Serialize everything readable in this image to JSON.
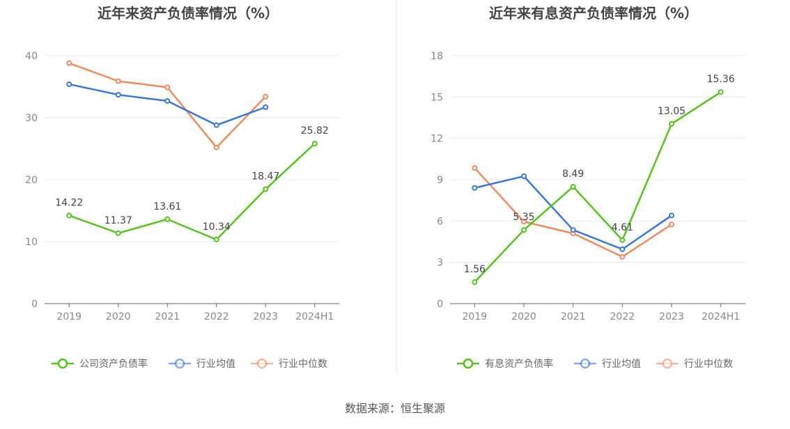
{
  "colors": {
    "green": "#52c41a",
    "blue": "#3875dc",
    "orange": "#f08a5a",
    "grid": "#e4e7ee",
    "axis": "#666666"
  },
  "source_text": "数据来源：恒生聚源",
  "chart_data": [
    {
      "type": "line",
      "title": "近年来资产负债率情况（%）",
      "categories": [
        "2019",
        "2020",
        "2021",
        "2022",
        "2023",
        "2024H1"
      ],
      "ylim": [
        0,
        40
      ],
      "yticks": [
        0,
        10,
        20,
        30,
        40
      ],
      "grid": true,
      "legend_position": "bottom",
      "series": [
        {
          "name": "公司资产负债率",
          "color": "#52c41a",
          "values": [
            14.22,
            11.37,
            13.61,
            10.34,
            18.47,
            25.82
          ],
          "labels": [
            "14.22",
            "11.37",
            "13.61",
            "10.34",
            "18.47",
            "25.82"
          ],
          "show_labels": true
        },
        {
          "name": "行业均值",
          "color": "#3875dc",
          "values": [
            35.4,
            33.7,
            32.7,
            28.8,
            31.7,
            null
          ],
          "show_labels": false
        },
        {
          "name": "行业中位数",
          "color": "#f08a5a",
          "values": [
            38.8,
            35.9,
            34.9,
            25.2,
            33.4,
            null
          ],
          "show_labels": false
        }
      ]
    },
    {
      "type": "line",
      "title": "近年来有息资产负债率情况（%）",
      "categories": [
        "2019",
        "2020",
        "2021",
        "2022",
        "2023",
        "2024H1"
      ],
      "ylim": [
        0,
        18
      ],
      "yticks": [
        0,
        3,
        6,
        9,
        12,
        15,
        18
      ],
      "grid": true,
      "legend_position": "bottom",
      "series": [
        {
          "name": "有息资产负债率",
          "color": "#52c41a",
          "values": [
            1.56,
            5.35,
            8.49,
            4.61,
            13.05,
            15.36
          ],
          "labels": [
            "1.56",
            "5.35",
            "8.49",
            "4.61",
            "13.05",
            "15.36"
          ],
          "show_labels": true
        },
        {
          "name": "行业均值",
          "color": "#3875dc",
          "values": [
            8.4,
            9.25,
            5.35,
            3.95,
            6.4,
            null
          ],
          "show_labels": false
        },
        {
          "name": "行业中位数",
          "color": "#f08a5a",
          "values": [
            9.85,
            5.95,
            5.1,
            3.4,
            5.75,
            null
          ],
          "show_labels": false
        }
      ]
    }
  ]
}
